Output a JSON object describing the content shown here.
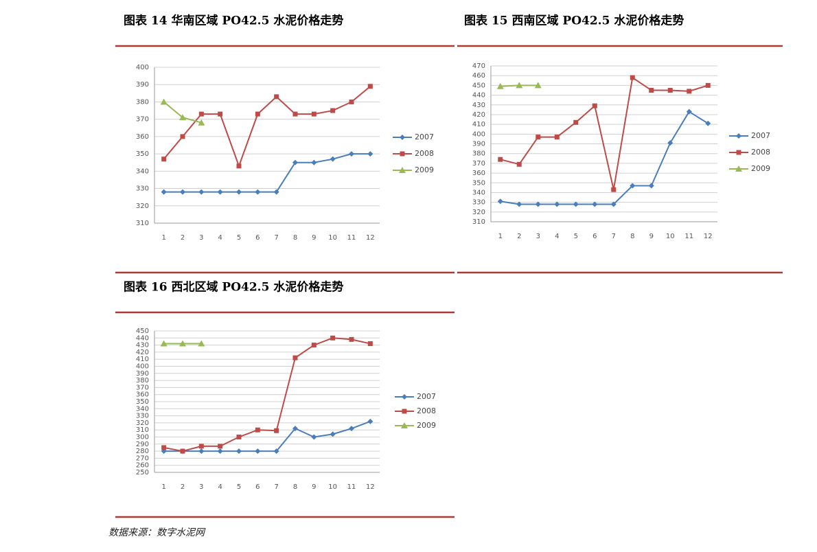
{
  "chart_data": [
    {
      "type": "line",
      "title": "图表 14 华南区域 PO42.5 水泥价格走势",
      "categories": [
        "1",
        "2",
        "3",
        "4",
        "5",
        "6",
        "7",
        "8",
        "9",
        "10",
        "11",
        "12"
      ],
      "ylim": [
        310,
        400
      ],
      "yticks": [
        310,
        320,
        330,
        340,
        350,
        360,
        370,
        380,
        390,
        400
      ],
      "grid": true,
      "series": [
        {
          "name": "2007",
          "color": "#4a7ebb",
          "values": [
            328,
            328,
            328,
            328,
            328,
            328,
            328,
            345,
            345,
            347,
            350,
            350
          ]
        },
        {
          "name": "2008",
          "color": "#be4b48",
          "values": [
            347,
            360,
            373,
            373,
            343,
            373,
            383,
            373,
            373,
            375,
            380,
            389
          ]
        },
        {
          "name": "2009",
          "color": "#98b954",
          "values": [
            380,
            371,
            368,
            null,
            null,
            null,
            null,
            null,
            null,
            null,
            null,
            null
          ]
        }
      ]
    },
    {
      "type": "line",
      "title": "图表 15 西南区域 PO42.5 水泥价格走势",
      "categories": [
        "1",
        "2",
        "3",
        "4",
        "5",
        "6",
        "7",
        "8",
        "9",
        "10",
        "11",
        "12"
      ],
      "ylim": [
        310,
        470
      ],
      "yticks": [
        310,
        320,
        330,
        340,
        350,
        360,
        370,
        380,
        390,
        400,
        410,
        420,
        430,
        440,
        450,
        460,
        470
      ],
      "grid": true,
      "series": [
        {
          "name": "2007",
          "color": "#4a7ebb",
          "values": [
            331,
            328,
            328,
            328,
            328,
            328,
            328,
            347,
            347,
            391,
            423,
            411
          ]
        },
        {
          "name": "2008",
          "color": "#be4b48",
          "values": [
            374,
            369,
            397,
            397,
            412,
            429,
            343,
            458,
            445,
            445,
            444,
            450
          ]
        },
        {
          "name": "2009",
          "color": "#98b954",
          "values": [
            449,
            450,
            450,
            null,
            null,
            null,
            null,
            null,
            null,
            null,
            null,
            null
          ]
        }
      ]
    },
    {
      "type": "line",
      "title": "图表 16 西北区域 PO42.5 水泥价格走势",
      "categories": [
        "1",
        "2",
        "3",
        "4",
        "5",
        "6",
        "7",
        "8",
        "9",
        "10",
        "11",
        "12"
      ],
      "ylim": [
        250,
        450
      ],
      "yticks": [
        250,
        260,
        270,
        280,
        290,
        300,
        310,
        320,
        330,
        340,
        350,
        360,
        370,
        380,
        390,
        400,
        410,
        420,
        430,
        440,
        450
      ],
      "grid": true,
      "series": [
        {
          "name": "2007",
          "color": "#4a7ebb",
          "values": [
            280,
            280,
            280,
            280,
            280,
            280,
            280,
            312,
            300,
            304,
            312,
            322
          ]
        },
        {
          "name": "2008",
          "color": "#be4b48",
          "values": [
            285,
            280,
            287,
            287,
            300,
            310,
            309,
            412,
            430,
            440,
            438,
            432
          ]
        },
        {
          "name": "2009",
          "color": "#98b954",
          "values": [
            432,
            432,
            432,
            null,
            null,
            null,
            null,
            null,
            null,
            null,
            null,
            null
          ]
        }
      ]
    }
  ],
  "source": "数据来源：数字水泥网"
}
